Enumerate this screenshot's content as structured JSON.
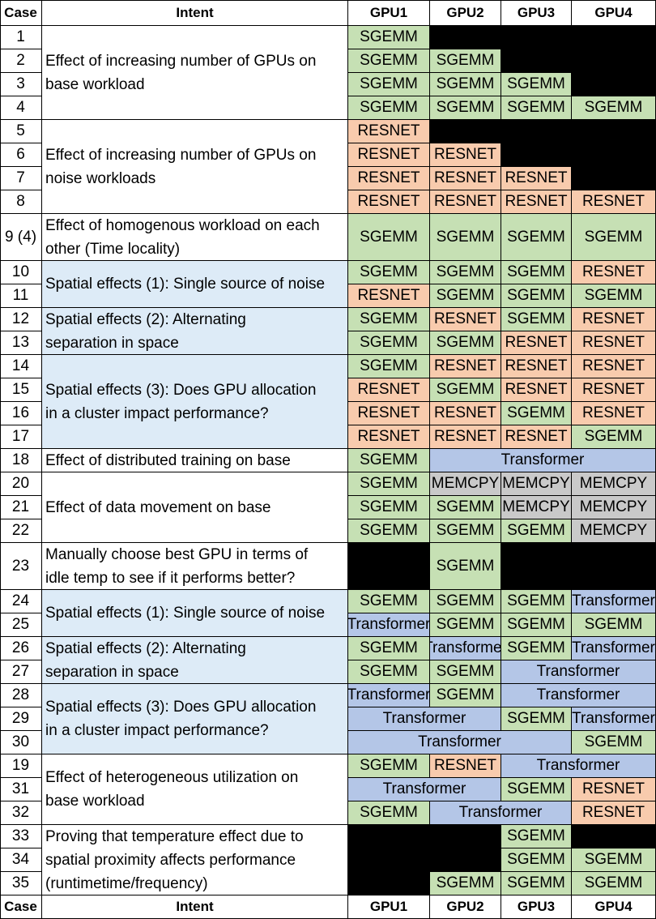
{
  "colors": {
    "sgemm": "#c6e0b4",
    "resnet": "#f8cbad",
    "transformer": "#b4c6e7",
    "memcpy": "#c9c9c9",
    "blank": "#000000",
    "white": "#ffffff",
    "blue_intent": "#ddebf7"
  },
  "header": {
    "case": "Case",
    "intent": "Intent",
    "gpus": [
      "GPU1",
      "GPU2",
      "GPU3",
      "GPU4"
    ]
  },
  "footer": {
    "case": "Case",
    "intent": "Intent",
    "gpus": [
      "GPU1",
      "GPU2",
      "GPU3",
      "GPU4"
    ]
  },
  "rows": [
    {
      "case": "1",
      "cells": [
        [
          "SGEMM",
          "sgemm",
          1
        ],
        [
          "",
          "blank",
          1
        ],
        [
          "",
          "blank",
          1
        ],
        [
          "",
          "blank",
          1
        ]
      ]
    },
    {
      "case": "2",
      "cells": [
        [
          "SGEMM",
          "sgemm",
          1
        ],
        [
          "SGEMM",
          "sgemm",
          1
        ],
        [
          "",
          "blank",
          1
        ],
        [
          "",
          "blank",
          1
        ]
      ]
    },
    {
      "case": "3",
      "cells": [
        [
          "SGEMM",
          "sgemm",
          1
        ],
        [
          "SGEMM",
          "sgemm",
          1
        ],
        [
          "SGEMM",
          "sgemm",
          1
        ],
        [
          "",
          "blank",
          1
        ]
      ]
    },
    {
      "case": "4",
      "cells": [
        [
          "SGEMM",
          "sgemm",
          1
        ],
        [
          "SGEMM",
          "sgemm",
          1
        ],
        [
          "SGEMM",
          "sgemm",
          1
        ],
        [
          "SGEMM",
          "sgemm",
          1
        ]
      ]
    },
    {
      "case": "5",
      "cells": [
        [
          "RESNET",
          "resnet",
          1
        ],
        [
          "",
          "blank",
          1
        ],
        [
          "",
          "blank",
          1
        ],
        [
          "",
          "blank",
          1
        ]
      ]
    },
    {
      "case": "6",
      "cells": [
        [
          "RESNET",
          "resnet",
          1
        ],
        [
          "RESNET",
          "resnet",
          1
        ],
        [
          "",
          "blank",
          1
        ],
        [
          "",
          "blank",
          1
        ]
      ]
    },
    {
      "case": "7",
      "cells": [
        [
          "RESNET",
          "resnet",
          1
        ],
        [
          "RESNET",
          "resnet",
          1
        ],
        [
          "RESNET",
          "resnet",
          1
        ],
        [
          "",
          "blank",
          1
        ]
      ]
    },
    {
      "case": "8",
      "cells": [
        [
          "RESNET",
          "resnet",
          1
        ],
        [
          "RESNET",
          "resnet",
          1
        ],
        [
          "RESNET",
          "resnet",
          1
        ],
        [
          "RESNET",
          "resnet",
          1
        ]
      ]
    },
    {
      "case": "9 (4)",
      "cells": [
        [
          "SGEMM",
          "sgemm",
          1
        ],
        [
          "SGEMM",
          "sgemm",
          1
        ],
        [
          "SGEMM",
          "sgemm",
          1
        ],
        [
          "SGEMM",
          "sgemm",
          1
        ]
      ]
    },
    {
      "case": "10",
      "cells": [
        [
          "SGEMM",
          "sgemm",
          1
        ],
        [
          "SGEMM",
          "sgemm",
          1
        ],
        [
          "SGEMM",
          "sgemm",
          1
        ],
        [
          "RESNET",
          "resnet",
          1
        ]
      ]
    },
    {
      "case": "11",
      "cells": [
        [
          "RESNET",
          "resnet",
          1
        ],
        [
          "SGEMM",
          "sgemm",
          1
        ],
        [
          "SGEMM",
          "sgemm",
          1
        ],
        [
          "SGEMM",
          "sgemm",
          1
        ]
      ]
    },
    {
      "case": "12",
      "cells": [
        [
          "SGEMM",
          "sgemm",
          1
        ],
        [
          "RESNET",
          "resnet",
          1
        ],
        [
          "SGEMM",
          "sgemm",
          1
        ],
        [
          "RESNET",
          "resnet",
          1
        ]
      ]
    },
    {
      "case": "13",
      "cells": [
        [
          "SGEMM",
          "sgemm",
          1
        ],
        [
          "SGEMM",
          "sgemm",
          1
        ],
        [
          "RESNET",
          "resnet",
          1
        ],
        [
          "RESNET",
          "resnet",
          1
        ]
      ]
    },
    {
      "case": "14",
      "cells": [
        [
          "SGEMM",
          "sgemm",
          1
        ],
        [
          "RESNET",
          "resnet",
          1
        ],
        [
          "RESNET",
          "resnet",
          1
        ],
        [
          "RESNET",
          "resnet",
          1
        ]
      ]
    },
    {
      "case": "15",
      "cells": [
        [
          "RESNET",
          "resnet",
          1
        ],
        [
          "SGEMM",
          "sgemm",
          1
        ],
        [
          "RESNET",
          "resnet",
          1
        ],
        [
          "RESNET",
          "resnet",
          1
        ]
      ]
    },
    {
      "case": "16",
      "cells": [
        [
          "RESNET",
          "resnet",
          1
        ],
        [
          "RESNET",
          "resnet",
          1
        ],
        [
          "SGEMM",
          "sgemm",
          1
        ],
        [
          "RESNET",
          "resnet",
          1
        ]
      ]
    },
    {
      "case": "17",
      "cells": [
        [
          "RESNET",
          "resnet",
          1
        ],
        [
          "RESNET",
          "resnet",
          1
        ],
        [
          "RESNET",
          "resnet",
          1
        ],
        [
          "SGEMM",
          "sgemm",
          1
        ]
      ]
    },
    {
      "case": "18",
      "cells": [
        [
          "SGEMM",
          "sgemm",
          1
        ],
        [
          "Transformer",
          "transformer",
          3
        ]
      ]
    },
    {
      "case": "20",
      "cells": [
        [
          "SGEMM",
          "sgemm",
          1
        ],
        [
          "MEMCPY",
          "memcpy",
          1
        ],
        [
          "MEMCPY",
          "memcpy",
          1
        ],
        [
          "MEMCPY",
          "memcpy",
          1
        ]
      ]
    },
    {
      "case": "21",
      "cells": [
        [
          "SGEMM",
          "sgemm",
          1
        ],
        [
          "SGEMM",
          "sgemm",
          1
        ],
        [
          "MEMCPY",
          "memcpy",
          1
        ],
        [
          "MEMCPY",
          "memcpy",
          1
        ]
      ]
    },
    {
      "case": "22",
      "cells": [
        [
          "SGEMM",
          "sgemm",
          1
        ],
        [
          "SGEMM",
          "sgemm",
          1
        ],
        [
          "SGEMM",
          "sgemm",
          1
        ],
        [
          "MEMCPY",
          "memcpy",
          1
        ]
      ]
    },
    {
      "case": "23",
      "cells": [
        [
          "",
          "blank",
          1
        ],
        [
          "SGEMM",
          "sgemm",
          1
        ],
        [
          "",
          "blank",
          1
        ],
        [
          "",
          "blank",
          1
        ]
      ]
    },
    {
      "case": "24",
      "cells": [
        [
          "SGEMM",
          "sgemm",
          1
        ],
        [
          "SGEMM",
          "sgemm",
          1
        ],
        [
          "SGEMM",
          "sgemm",
          1
        ],
        [
          "Transformer",
          "transformer",
          1
        ]
      ]
    },
    {
      "case": "25",
      "cells": [
        [
          "Transformer",
          "transformer",
          1
        ],
        [
          "SGEMM",
          "sgemm",
          1
        ],
        [
          "SGEMM",
          "sgemm",
          1
        ],
        [
          "SGEMM",
          "sgemm",
          1
        ]
      ]
    },
    {
      "case": "26",
      "cells": [
        [
          "SGEMM",
          "sgemm",
          1
        ],
        [
          "Transformer",
          "transformer",
          1
        ],
        [
          "SGEMM",
          "sgemm",
          1
        ],
        [
          "Transformer",
          "transformer",
          1
        ]
      ]
    },
    {
      "case": "27",
      "cells": [
        [
          "SGEMM",
          "sgemm",
          1
        ],
        [
          "SGEMM",
          "sgemm",
          1
        ],
        [
          "Transformer",
          "transformer",
          2
        ]
      ]
    },
    {
      "case": "28",
      "cells": [
        [
          "Transformer",
          "transformer",
          1
        ],
        [
          "SGEMM",
          "sgemm",
          1
        ],
        [
          "Transformer",
          "transformer",
          2
        ]
      ]
    },
    {
      "case": "29",
      "cells": [
        [
          "Transformer",
          "transformer",
          2
        ],
        [
          "SGEMM",
          "sgemm",
          1
        ],
        [
          "Transformer",
          "transformer",
          1
        ]
      ]
    },
    {
      "case": "30",
      "cells": [
        [
          "Transformer",
          "transformer",
          3
        ],
        [
          "SGEMM",
          "sgemm",
          1
        ]
      ]
    },
    {
      "case": "19",
      "cells": [
        [
          "SGEMM",
          "sgemm",
          1
        ],
        [
          "RESNET",
          "resnet",
          1
        ],
        [
          "Transformer",
          "transformer",
          2
        ]
      ]
    },
    {
      "case": "31",
      "cells": [
        [
          "Transformer",
          "transformer",
          2
        ],
        [
          "SGEMM",
          "sgemm",
          1
        ],
        [
          "RESNET",
          "resnet",
          1
        ]
      ]
    },
    {
      "case": "32",
      "cells": [
        [
          "SGEMM",
          "sgemm",
          1
        ],
        [
          "Transformer",
          "transformer",
          2
        ],
        [
          "RESNET",
          "resnet",
          1
        ]
      ]
    },
    {
      "case": "33",
      "cells": [
        [
          "",
          "blank",
          1
        ],
        [
          "",
          "blank",
          1
        ],
        [
          "SGEMM",
          "sgemm",
          1
        ],
        [
          "",
          "blank",
          1
        ]
      ]
    },
    {
      "case": "34",
      "cells": [
        [
          "",
          "blank",
          1
        ],
        [
          "",
          "blank",
          1
        ],
        [
          "SGEMM",
          "sgemm",
          1
        ],
        [
          "SGEMM",
          "sgemm",
          1
        ]
      ]
    },
    {
      "case": "35",
      "cells": [
        [
          "",
          "blank",
          1
        ],
        [
          "SGEMM",
          "sgemm",
          1
        ],
        [
          "SGEMM",
          "sgemm",
          1
        ],
        [
          "SGEMM",
          "sgemm",
          1
        ]
      ]
    }
  ],
  "intents": [
    {
      "start": 0,
      "span": 4,
      "bg": "white",
      "lines": [
        "Effect of increasing number of GPUs on",
        "base workload"
      ]
    },
    {
      "start": 4,
      "span": 4,
      "bg": "white",
      "lines": [
        "Effect of increasing number of GPUs on",
        "noise workloads"
      ]
    },
    {
      "start": 8,
      "span": 1,
      "bg": "white",
      "lines": [
        "Effect of homogenous workload on each",
        "other (Time locality)"
      ]
    },
    {
      "start": 9,
      "span": 2,
      "bg": "blue_intent",
      "lines": [
        "Spatial effects (1): Single source of noise"
      ]
    },
    {
      "start": 11,
      "span": 2,
      "bg": "blue_intent",
      "lines": [
        "Spatial effects (2): Alternating",
        "separation in space"
      ]
    },
    {
      "start": 13,
      "span": 4,
      "bg": "blue_intent",
      "lines": [
        "Spatial effects (3): Does GPU allocation",
        "in a cluster impact performance?"
      ]
    },
    {
      "start": 17,
      "span": 1,
      "bg": "white",
      "lines": [
        "Effect of distributed training on base"
      ]
    },
    {
      "start": 18,
      "span": 3,
      "bg": "white",
      "lines": [
        "Effect of data movement on base"
      ]
    },
    {
      "start": 21,
      "span": 1,
      "bg": "white",
      "lines": [
        "Manually choose best GPU in terms of",
        "idle temp to see if it performs better?"
      ]
    },
    {
      "start": 22,
      "span": 2,
      "bg": "blue_intent",
      "lines": [
        "Spatial effects (1): Single source of noise"
      ]
    },
    {
      "start": 24,
      "span": 2,
      "bg": "blue_intent",
      "lines": [
        "Spatial effects (2): Alternating",
        "separation in space"
      ]
    },
    {
      "start": 26,
      "span": 3,
      "bg": "blue_intent",
      "lines": [
        "Spatial effects (3): Does GPU allocation",
        "in a cluster impact performance?"
      ]
    },
    {
      "start": 29,
      "span": 3,
      "bg": "white",
      "lines": [
        "Effect of heterogeneous utilization on",
        "base workload"
      ]
    },
    {
      "start": 32,
      "span": 3,
      "bg": "white",
      "lines": [
        "Proving that temperature effect due to",
        "spatial proximity affects performance",
        "(runtimetime/frequency)"
      ]
    }
  ]
}
